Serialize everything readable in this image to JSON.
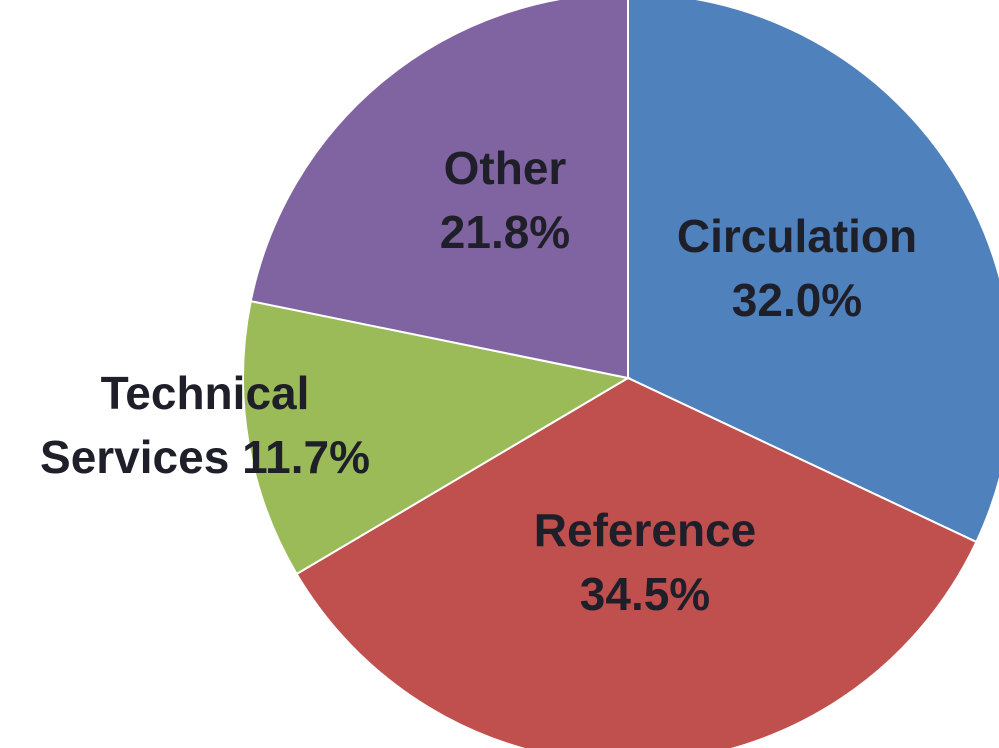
{
  "chart_data": {
    "type": "pie",
    "categories": [
      "Circulation",
      "Reference",
      "Technical Services",
      "Other"
    ],
    "values": [
      32.0,
      34.5,
      11.7,
      21.8
    ],
    "value_labels": [
      "32.0%",
      "34.5%",
      "11.7%",
      "21.8%"
    ],
    "colors": [
      "#4f81bd",
      "#c0504d",
      "#9bbb59",
      "#8064a2"
    ]
  }
}
